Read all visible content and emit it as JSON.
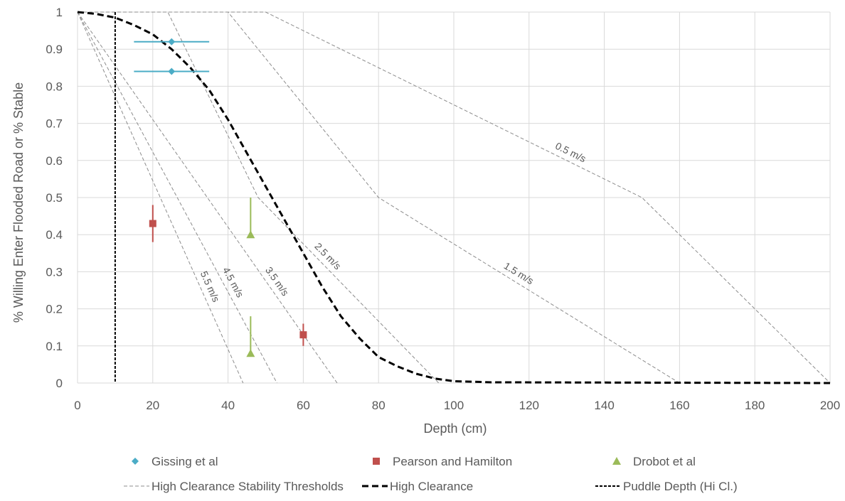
{
  "chart_data": {
    "type": "scatter",
    "xlabel": "Depth (cm)",
    "ylabel": "% Willing Enter Flooded Road     or      % Stable",
    "xlim": [
      0,
      200
    ],
    "ylim": [
      0,
      1
    ],
    "x_ticks": [
      "0",
      "20",
      "40",
      "60",
      "80",
      "100",
      "120",
      "140",
      "160",
      "180",
      "200"
    ],
    "y_ticks": [
      "0",
      "0.1",
      "0.2",
      "0.3",
      "0.4",
      "0.5",
      "0.6",
      "0.7",
      "0.8",
      "0.9",
      "1"
    ],
    "grid": true,
    "legend_position": "bottom",
    "colors": {
      "gissing": "#4bacc6",
      "pearson": "#c0504d",
      "drobot": "#9bbb59",
      "threshold": "#8c8c8c",
      "high_clearance": "#000000",
      "puddle": "#000000"
    },
    "series": [
      {
        "name": "Gissing et al",
        "kind": "points",
        "marker": "diamond",
        "points": [
          {
            "x": 25,
            "y": 0.92,
            "x_err": [
              15,
              35
            ]
          },
          {
            "x": 25,
            "y": 0.84,
            "x_err": [
              15,
              35
            ]
          }
        ]
      },
      {
        "name": "Pearson and Hamilton",
        "kind": "points",
        "marker": "square",
        "points": [
          {
            "x": 20,
            "y": 0.43,
            "y_err": [
              0.38,
              0.48
            ]
          },
          {
            "x": 60,
            "y": 0.13,
            "y_err": [
              0.1,
              0.16
            ]
          }
        ]
      },
      {
        "name": "Drobot et al",
        "kind": "points",
        "marker": "triangle",
        "points": [
          {
            "x": 46,
            "y": 0.4,
            "y_err": [
              0.4,
              0.5
            ]
          },
          {
            "x": 46,
            "y": 0.08,
            "y_err": [
              0.08,
              0.18
            ]
          }
        ]
      },
      {
        "name": "High Clearance Stability Thresholds",
        "kind": "thresholds",
        "lines": [
          {
            "label": "0.5 m/s",
            "x": [
              0,
              50,
              150,
              200
            ],
            "y": [
              1,
              1,
              0.5,
              0
            ]
          },
          {
            "label": "1.5 m/s",
            "x": [
              0,
              40,
              80,
              160
            ],
            "y": [
              1,
              1,
              0.5,
              0
            ]
          },
          {
            "label": "2.5 m/s",
            "x": [
              0,
              24,
              48,
              96
            ],
            "y": [
              1,
              1,
              0.5,
              0
            ]
          },
          {
            "label": "3.5 m/s",
            "x": [
              0,
              69
            ],
            "y": [
              1,
              0
            ]
          },
          {
            "label": "4.5 m/s",
            "x": [
              0,
              53
            ],
            "y": [
              1,
              0
            ]
          },
          {
            "label": "5.5 m/s",
            "x": [
              0,
              44
            ],
            "y": [
              1,
              0
            ]
          }
        ]
      },
      {
        "name": "High Clearance",
        "kind": "curve",
        "x": [
          0,
          5,
          10,
          15,
          20,
          25,
          30,
          35,
          40,
          45,
          50,
          55,
          60,
          65,
          70,
          75,
          80,
          85,
          90,
          95,
          100,
          110,
          200
        ],
        "y": [
          1,
          0.995,
          0.985,
          0.965,
          0.94,
          0.9,
          0.85,
          0.79,
          0.71,
          0.62,
          0.53,
          0.44,
          0.35,
          0.26,
          0.18,
          0.12,
          0.07,
          0.045,
          0.025,
          0.012,
          0.005,
          0.002,
          0
        ]
      },
      {
        "name": "Puddle Depth (Hi Cl.)",
        "kind": "vline",
        "x": 10
      }
    ]
  }
}
